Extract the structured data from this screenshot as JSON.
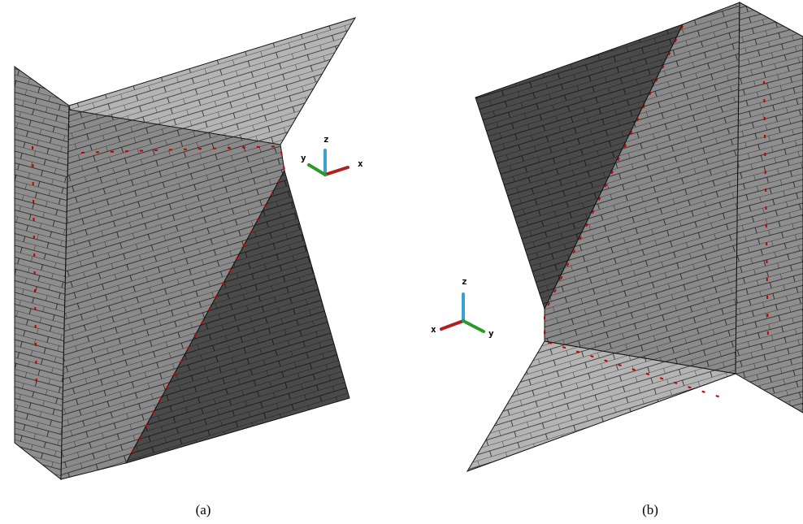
{
  "panels": [
    {
      "caption": "(a)",
      "axes": {
        "x": "x",
        "y": "y",
        "z": "z"
      }
    },
    {
      "caption": "(b)",
      "axes": {
        "x": "x",
        "y": "y",
        "z": "z"
      }
    }
  ]
}
